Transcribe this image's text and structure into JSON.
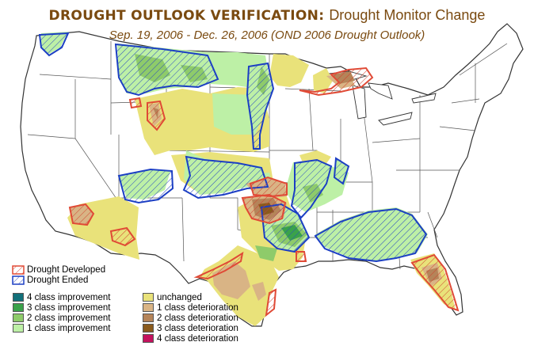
{
  "title": {
    "main": "DROUGHT OUTLOOK VERIFICATION:",
    "sub": "Drought Monitor Change",
    "period": "Sep. 19, 2006 - Dec. 26, 2006 (OND 2006 Drought Outlook)"
  },
  "legend": {
    "developed": {
      "label": "Drought Developed",
      "color": "#e04a36"
    },
    "ended": {
      "label": "Drought Ended",
      "color": "#1c3fc4"
    },
    "improvement": [
      {
        "label": "4 class improvement",
        "color": "#12707a"
      },
      {
        "label": "3 class improvement",
        "color": "#3aa24a"
      },
      {
        "label": "2 class improvement",
        "color": "#8ecb6a"
      },
      {
        "label": "1 class improvement",
        "color": "#bdf0a6"
      }
    ],
    "unchanged": {
      "label": "unchanged",
      "color": "#e9e27a"
    },
    "deterioration": [
      {
        "label": "1 class deterioration",
        "color": "#d9b485"
      },
      {
        "label": "2 class deterioration",
        "color": "#b58459"
      },
      {
        "label": "3 class deterioration",
        "color": "#8a5a1c"
      },
      {
        "label": "4 class deterioration",
        "color": "#c4125e"
      }
    ]
  }
}
